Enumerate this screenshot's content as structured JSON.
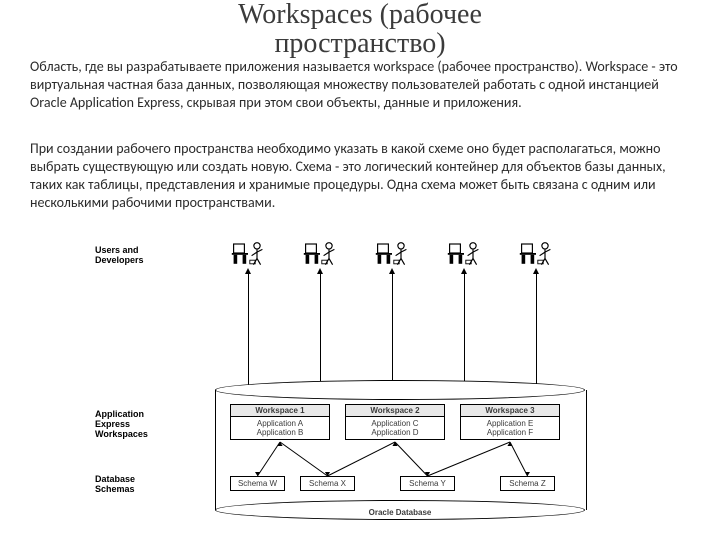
{
  "title_line1": "Workspaces (рабочее",
  "title_line2": "пространство)",
  "paragraph1": "Область, где вы разрабатываете приложения называется workspace (рабочее пространство). Workspace - это виртуальная частная база данных, позволяющая множеству пользователей работать с одной инстанцией Oracle Application Express, скрывая при этом свои объекты, данные и приложения.",
  "paragraph2": "При создании рабочего пространства необходимо указать в какой схеме оно будет располагаться, можно выбрать существующую или создать новую. Схема - это логический контейнер для объектов базы данных, таких как таблицы, представления и хранимые процедуры. Одна схема может быть связана с одним или несколькими рабочими пространствами.",
  "labels": {
    "users": "Users and\nDevelopers",
    "ws": "Application\nExpress\nWorkspaces",
    "schemas": "Database\nSchemas",
    "oracle": "Oracle Database"
  },
  "workspaces": [
    {
      "title": "Workspace 1",
      "apps": "Application A\nApplication B"
    },
    {
      "title": "Workspace 2",
      "apps": "Application C\nApplication D"
    },
    {
      "title": "Workspace 3",
      "apps": "Application E\nApplication F"
    }
  ],
  "schemas": [
    "Schema W",
    "Schema X",
    "Schema Y",
    "Schema Z"
  ],
  "layout": {
    "user_x": [
      110,
      182,
      254,
      326,
      398
    ],
    "ws_x": [
      110,
      225,
      340
    ],
    "ws_w": 100,
    "schema_x": [
      110,
      180,
      280,
      380
    ],
    "schema_w": [
      55,
      55,
      55,
      55
    ]
  },
  "colors": {
    "text": "#2b2b2b",
    "line": "#000000",
    "ws_header_bg": "#e8e8e8"
  }
}
